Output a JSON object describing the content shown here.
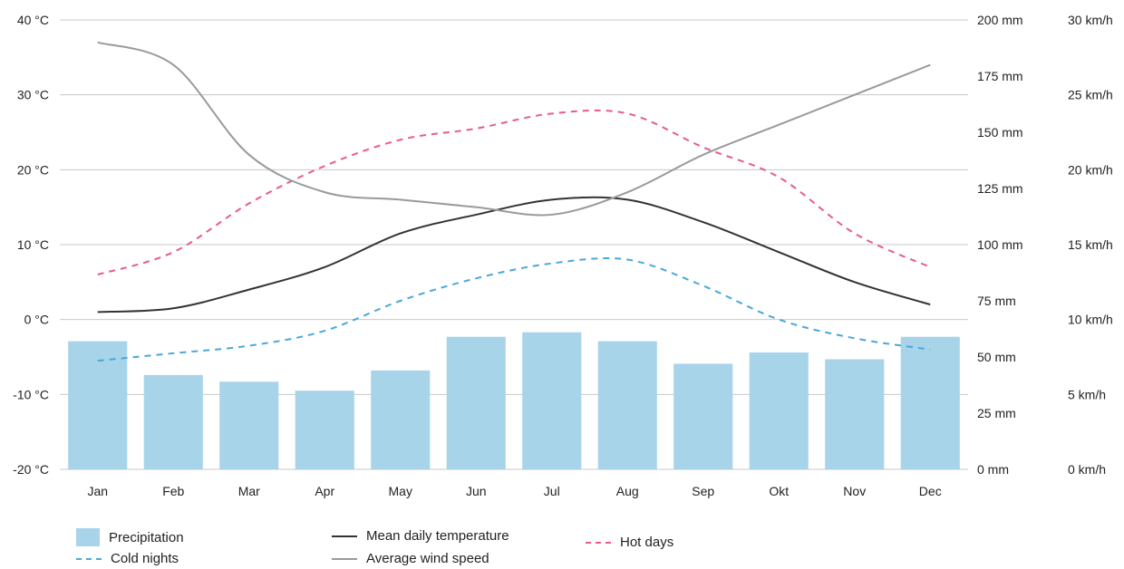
{
  "chart_data": {
    "type": "bar",
    "categories": [
      "Jan",
      "Feb",
      "Mar",
      "Apr",
      "May",
      "Jun",
      "Jul",
      "Aug",
      "Sep",
      "Okt",
      "Nov",
      "Dec"
    ],
    "axes": {
      "temperature": {
        "ticks": [
          "40 °C",
          "30 °C",
          "20 °C",
          "10 °C",
          "0 °C",
          "-10 °C",
          "-20 °C"
        ],
        "range": [
          -20,
          40
        ]
      },
      "precipitation": {
        "ticks": [
          "200 mm",
          "175 mm",
          "150 mm",
          "125 mm",
          "100 mm",
          "75 mm",
          "50 mm",
          "25 mm",
          "0 mm"
        ],
        "range": [
          0,
          200
        ]
      },
      "wind": {
        "ticks": [
          "30 km/h",
          "25 km/h",
          "20 km/h",
          "15 km/h",
          "10 km/h",
          "5 km/h",
          "0 km/h"
        ],
        "range": [
          0,
          30
        ]
      }
    },
    "series": [
      {
        "name": "Precipitation",
        "type": "bar",
        "axis": "precipitation",
        "unit": "mm",
        "color": "#a8d4ea",
        "values": [
          57,
          42,
          39,
          35,
          44,
          59,
          61,
          57,
          47,
          52,
          49,
          59
        ]
      },
      {
        "name": "Mean daily temperature",
        "type": "line",
        "axis": "temperature",
        "unit": "°C",
        "color": "#333333",
        "style": "solid",
        "values": [
          1.0,
          1.5,
          4.0,
          7.0,
          11.5,
          14.0,
          16.0,
          16.0,
          13.0,
          9.0,
          5.0,
          2.0
        ]
      },
      {
        "name": "Hot days",
        "type": "line",
        "axis": "temperature",
        "unit": "°C",
        "color": "#e75c8c",
        "style": "dashed",
        "values": [
          6.0,
          9.0,
          15.5,
          20.5,
          24.0,
          25.5,
          27.5,
          27.5,
          23.0,
          19.0,
          11.5,
          7.0
        ]
      },
      {
        "name": "Cold nights",
        "type": "line",
        "axis": "temperature",
        "unit": "°C",
        "color": "#4aa8d8",
        "style": "dashed",
        "values": [
          -5.5,
          -4.5,
          -3.5,
          -1.5,
          2.5,
          5.5,
          7.5,
          8.0,
          4.5,
          0.0,
          -2.5,
          -4.0
        ]
      },
      {
        "name": "Average wind speed",
        "type": "line",
        "axis": "wind",
        "unit": "km/h",
        "color": "#9a9a9a",
        "style": "solid",
        "values": [
          28.5,
          27.0,
          21.0,
          18.5,
          18.0,
          17.5,
          17.0,
          18.5,
          21.0,
          23.0,
          25.0,
          27.0
        ]
      }
    ],
    "grid": true,
    "legend_position": "bottom"
  }
}
